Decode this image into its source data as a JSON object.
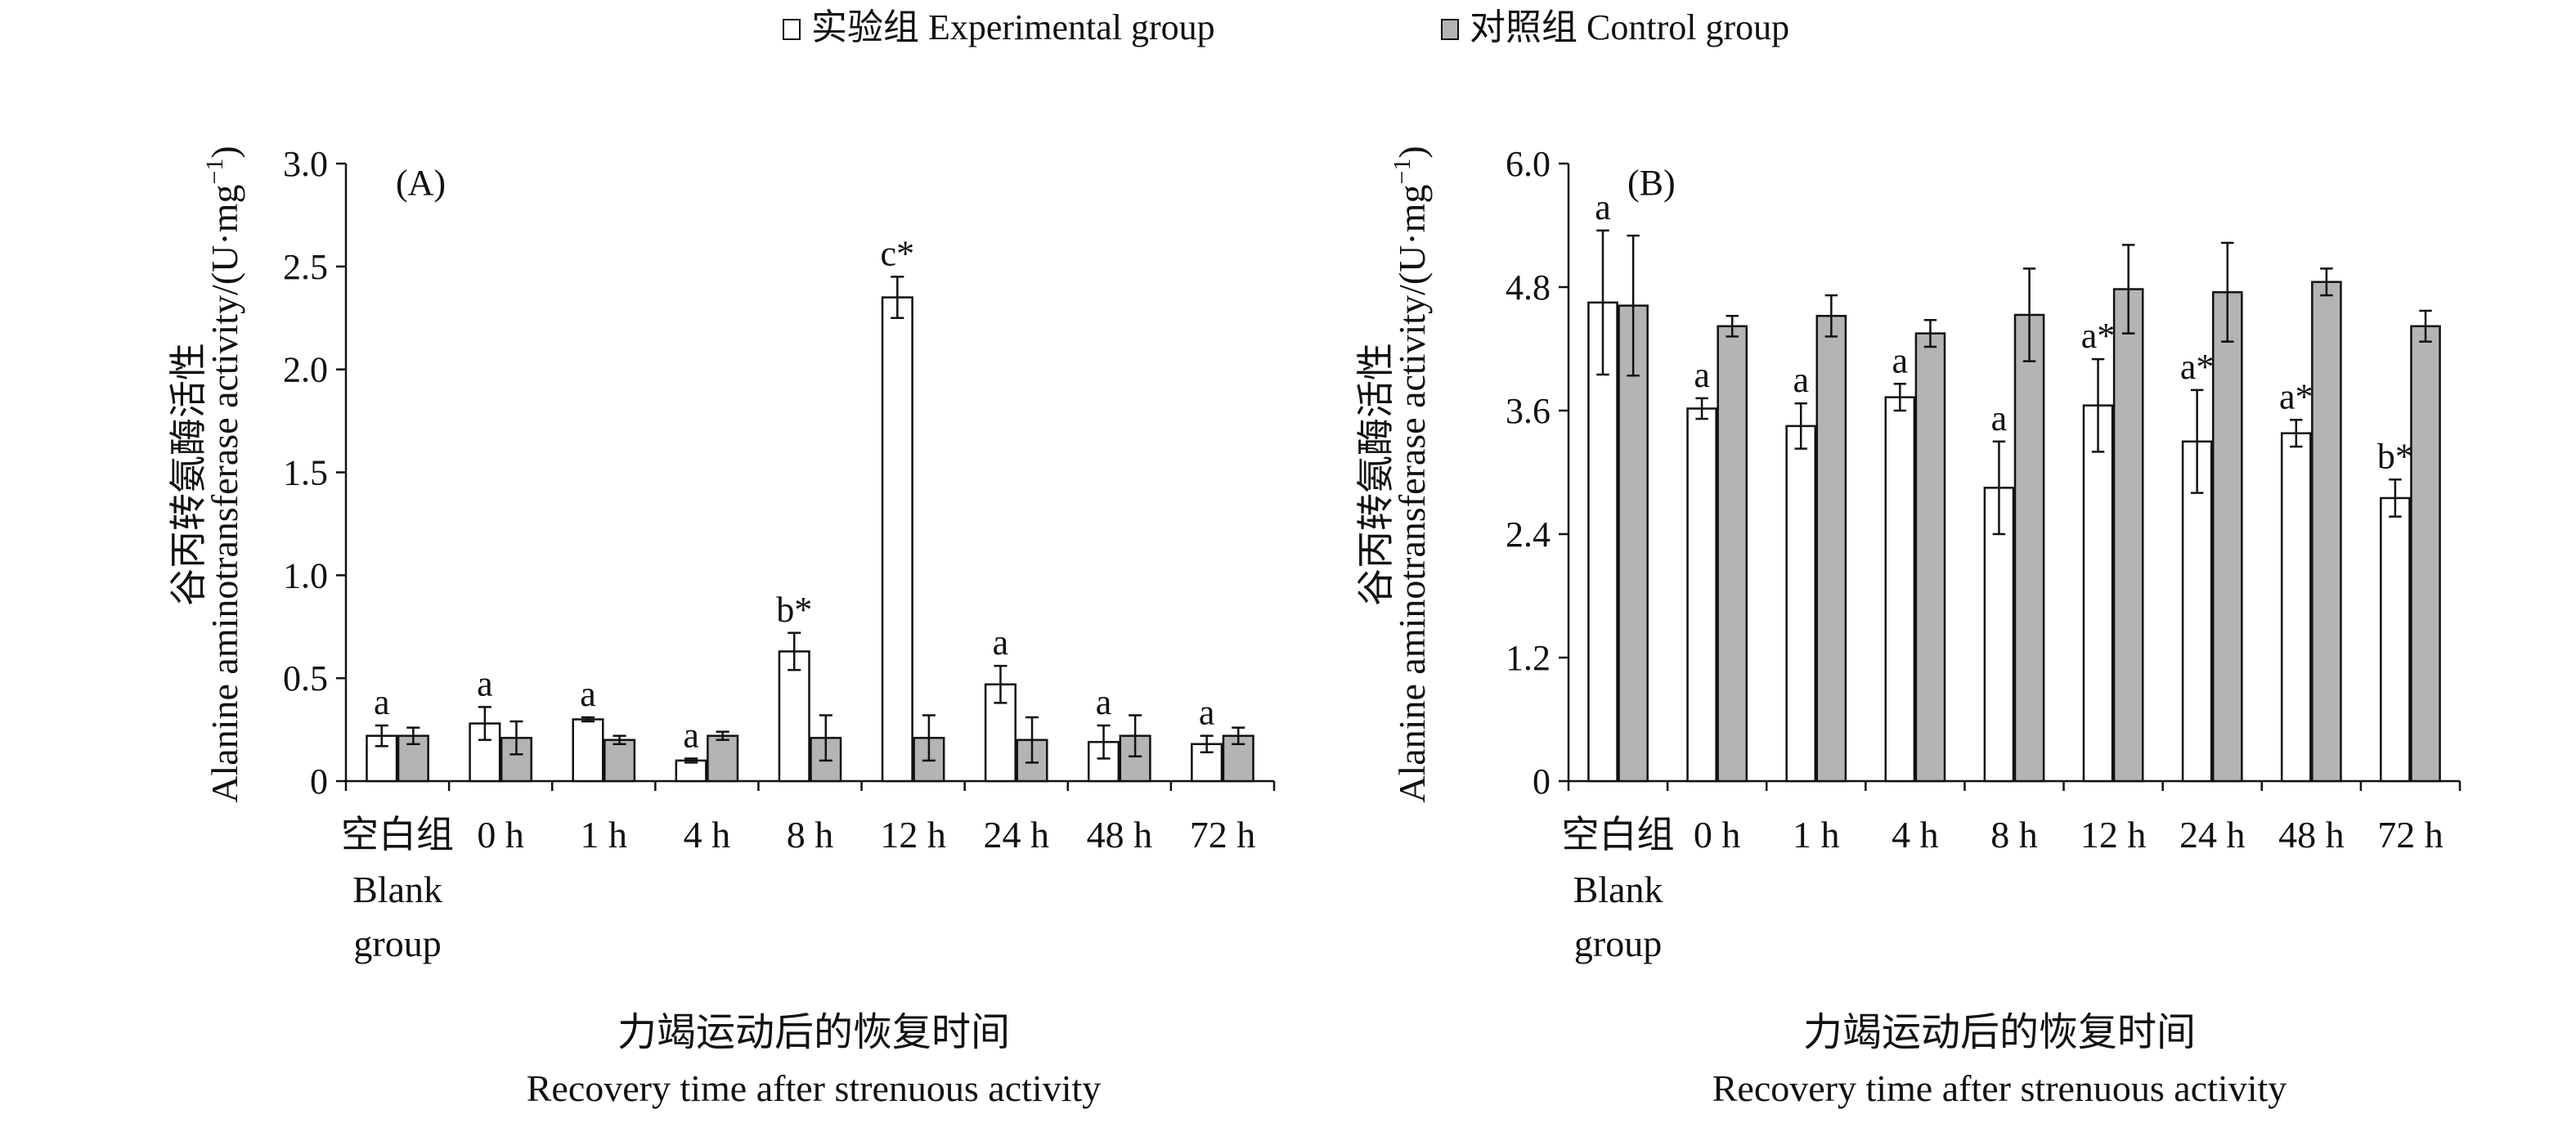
{
  "legend": {
    "experimental_label": "实验组 Experimental group",
    "control_label": "对照组 Control group",
    "experimental_color": "#ffffff",
    "control_color": "#b4b4b4"
  },
  "chart_data": [
    {
      "type": "bar",
      "panel_label": "(A)",
      "ylabel_cn": "谷丙转氨酶活性",
      "ylabel_en": "Alanine aminotransferase activity/(U·mg",
      "ylabel_sup": "−1",
      "ylabel_close": ")",
      "xlabel_cn": "力竭运动后的恢复时间",
      "xlabel_en": "Recovery time after strenuous activity",
      "categories": [
        "空白组",
        "0 h",
        "1 h",
        "4 h",
        "8 h",
        "12 h",
        "24 h",
        "48 h",
        "72 h"
      ],
      "category_sublabel": [
        "Blank",
        "group"
      ],
      "ylim": [
        0,
        3.0
      ],
      "yticks": [
        0,
        0.5,
        1.0,
        1.5,
        2.0,
        2.5,
        3.0
      ],
      "ytick_labels": [
        "0",
        "0.5",
        "1.0",
        "1.5",
        "2.0",
        "2.5",
        "3.0"
      ],
      "series": [
        {
          "name": "实验组 Experimental group",
          "values": [
            0.22,
            0.28,
            0.3,
            0.1,
            0.63,
            2.35,
            0.47,
            0.19,
            0.18
          ],
          "errors": [
            0.05,
            0.08,
            0.01,
            0.01,
            0.09,
            0.1,
            0.09,
            0.08,
            0.04
          ],
          "annotations": [
            "a",
            "a",
            "a",
            "a",
            "b*",
            "c*",
            "a",
            "a",
            "a"
          ]
        },
        {
          "name": "对照组 Control group",
          "values": [
            0.22,
            0.21,
            0.2,
            0.22,
            0.21,
            0.21,
            0.2,
            0.22,
            0.22
          ],
          "errors": [
            0.04,
            0.08,
            0.02,
            0.02,
            0.11,
            0.11,
            0.11,
            0.1,
            0.04
          ],
          "annotations": [
            "",
            "",
            "",
            "",
            "",
            "",
            "",
            "",
            ""
          ]
        }
      ]
    },
    {
      "type": "bar",
      "panel_label": "(B)",
      "ylabel_cn": "谷丙转氨酶活性",
      "ylabel_en": "Alanine aminotransferase activity/(U·mg",
      "ylabel_sup": "−1",
      "ylabel_close": ")",
      "xlabel_cn": "力竭运动后的恢复时间",
      "xlabel_en": "Recovery time after strenuous activity",
      "categories": [
        "空白组",
        "0 h",
        "1 h",
        "4 h",
        "8 h",
        "12 h",
        "24 h",
        "48 h",
        "72 h"
      ],
      "category_sublabel": [
        "Blank",
        "group"
      ],
      "ylim": [
        0,
        6.0
      ],
      "yticks": [
        0,
        1.2,
        2.4,
        3.6,
        4.8,
        6.0
      ],
      "ytick_labels": [
        "0",
        "1.2",
        "2.4",
        "3.6",
        "4.8",
        "6.0"
      ],
      "series": [
        {
          "name": "实验组 Experimental group",
          "values": [
            4.65,
            3.62,
            3.45,
            3.73,
            2.85,
            3.65,
            3.3,
            3.38,
            2.75
          ],
          "errors": [
            0.7,
            0.1,
            0.22,
            0.13,
            0.45,
            0.45,
            0.5,
            0.13,
            0.18
          ],
          "annotations": [
            "a",
            "a",
            "a",
            "a",
            "a",
            "a*",
            "a*",
            "a*",
            "b*"
          ]
        },
        {
          "name": "对照组 Control group",
          "values": [
            4.62,
            4.42,
            4.52,
            4.35,
            4.53,
            4.78,
            4.75,
            4.85,
            4.42
          ],
          "errors": [
            0.68,
            0.1,
            0.2,
            0.13,
            0.45,
            0.43,
            0.48,
            0.13,
            0.15
          ],
          "annotations": [
            "",
            "",
            "",
            "",
            "",
            "",
            "",
            "",
            ""
          ]
        }
      ]
    }
  ]
}
